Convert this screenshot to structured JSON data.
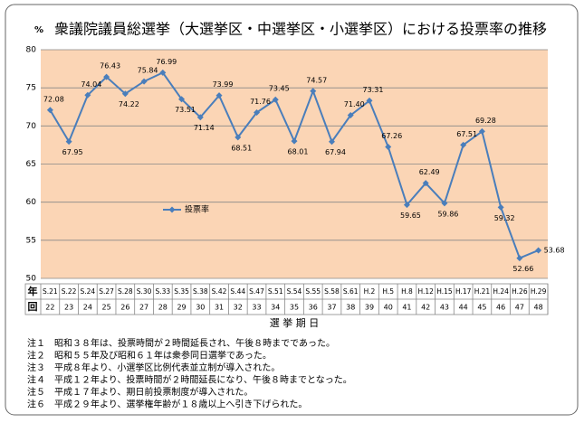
{
  "chart_data": {
    "type": "line",
    "title": "衆議院議員総選挙（大選挙区・中選挙区・小選挙区）における投票率の推移",
    "y_label": "%",
    "x_label": "選 挙 期 日",
    "row_labels": [
      "年",
      "回"
    ],
    "categories": [
      "S.21",
      "S.22",
      "S.24",
      "S.27",
      "S.28",
      "S.30",
      "S.33",
      "S.35",
      "S.38",
      "S.42",
      "S.44",
      "S.47",
      "S.51",
      "S.54",
      "S.55",
      "S.58",
      "S.61",
      "H.2",
      "H.5",
      "H.8",
      "H.12",
      "H.15",
      "H.17",
      "H.21",
      "H.24",
      "H.26",
      "H.29"
    ],
    "rounds": [
      "22",
      "23",
      "24",
      "25",
      "26",
      "27",
      "28",
      "29",
      "30",
      "31",
      "32",
      "33",
      "34",
      "35",
      "36",
      "37",
      "38",
      "39",
      "40",
      "41",
      "42",
      "43",
      "44",
      "45",
      "46",
      "47",
      "48"
    ],
    "series": [
      {
        "name": "投票率",
        "color": "#4a7ebb",
        "values": [
          72.08,
          67.95,
          74.04,
          76.43,
          74.22,
          75.84,
          76.99,
          73.51,
          71.14,
          73.99,
          68.51,
          71.76,
          73.45,
          68.01,
          74.57,
          67.94,
          71.4,
          73.31,
          67.26,
          59.65,
          62.49,
          59.86,
          67.51,
          69.28,
          59.32,
          52.66,
          53.68
        ],
        "value_labels": [
          "72.08",
          "67.95",
          "74.04",
          "76.43",
          "74.22",
          "75.84",
          "76.99",
          "73.51",
          "71.14",
          "73.99",
          "68.51",
          "71.76",
          "73.45",
          "68.01",
          "74.57",
          "67.94",
          "71.40",
          "73.31",
          "67.26",
          "59.65",
          "62.49",
          "59.86",
          "67.51",
          "69.28",
          "59.32",
          "52.66",
          "53.68"
        ]
      }
    ],
    "ylim": [
      50,
      80
    ],
    "yticks": [
      50,
      55,
      60,
      65,
      70,
      75,
      80
    ],
    "grid": true,
    "legend": "inside-left",
    "notes": [
      "注１　昭和３８年は、投票時間が２時間延長され、午後８時までであった。",
      "注２　昭和５５年及び昭和６１年は衆参同日選挙であった。",
      "注３　平成８年より、小選挙区比例代表並立制が導入された。",
      "注４　平成１２年より、投票時間が２時間延長になり、午後８時までとなった。",
      "注５　平成１７年より、期日前投票制度が導入された。",
      "注６　平成２９年より、選挙権年齢が１８歳以上へ引き下げられた。"
    ]
  }
}
